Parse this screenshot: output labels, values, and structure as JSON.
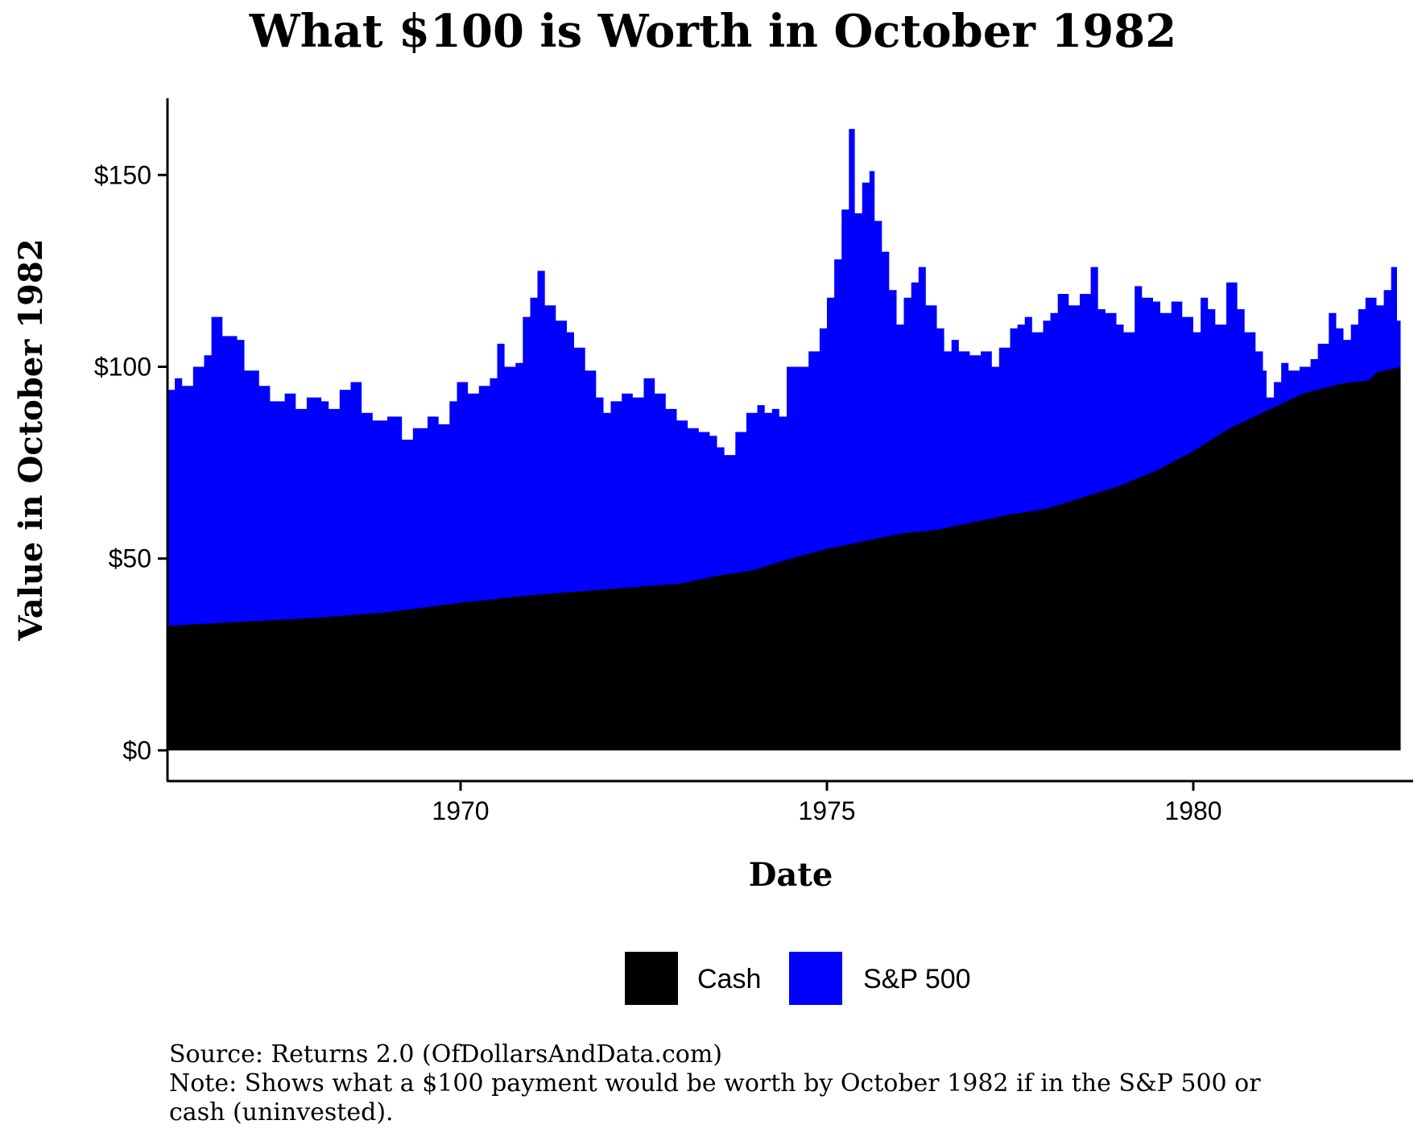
{
  "chart_data": {
    "type": "area",
    "title": "What $100 is Worth in October 1982",
    "xlabel": "Date",
    "ylabel": "Value in October 1982",
    "x_start": "1966-01",
    "x_end": "1982-10",
    "xlim": [
      1966.0,
      1983.0
    ],
    "ylim": [
      -8,
      170
    ],
    "x_ticks": [
      1970,
      1975,
      1980
    ],
    "x_tick_labels": [
      "1970",
      "1975",
      "1980"
    ],
    "y_ticks": [
      0,
      50,
      100,
      150
    ],
    "y_tick_labels": [
      "$0",
      "$50",
      "$100",
      "$150"
    ],
    "grid": false,
    "legend_position": "bottom",
    "series": [
      {
        "name": "Cash",
        "color": "#000000",
        "points": [
          [
            1966.0,
            32.5
          ],
          [
            1967.0,
            33.5
          ],
          [
            1968.0,
            34.5
          ],
          [
            1969.0,
            36.0
          ],
          [
            1970.0,
            38.5
          ],
          [
            1971.0,
            40.5
          ],
          [
            1972.0,
            42.0
          ],
          [
            1973.0,
            43.5
          ],
          [
            1973.5,
            45.5
          ],
          [
            1974.0,
            47.0
          ],
          [
            1974.5,
            50.0
          ],
          [
            1975.0,
            52.5
          ],
          [
            1975.5,
            54.5
          ],
          [
            1976.0,
            56.5
          ],
          [
            1976.5,
            57.5
          ],
          [
            1977.0,
            59.5
          ],
          [
            1977.5,
            61.5
          ],
          [
            1978.0,
            63.0
          ],
          [
            1978.5,
            66.0
          ],
          [
            1979.0,
            69.0
          ],
          [
            1979.5,
            73.0
          ],
          [
            1980.0,
            78.0
          ],
          [
            1980.5,
            84.0
          ],
          [
            1981.0,
            88.5
          ],
          [
            1981.5,
            93.0
          ],
          [
            1982.0,
            95.5
          ],
          [
            1982.4,
            96.5
          ],
          [
            1982.5,
            98.5
          ],
          [
            1982.83,
            100.0
          ]
        ]
      },
      {
        "name": "S&P 500",
        "color": "#0000ff",
        "points": [
          [
            1966.0,
            94
          ],
          [
            1966.1,
            97
          ],
          [
            1966.2,
            95
          ],
          [
            1966.35,
            100
          ],
          [
            1966.5,
            103
          ],
          [
            1966.6,
            113
          ],
          [
            1966.75,
            108
          ],
          [
            1966.95,
            107
          ],
          [
            1967.05,
            99
          ],
          [
            1967.25,
            95
          ],
          [
            1967.4,
            91
          ],
          [
            1967.6,
            93
          ],
          [
            1967.75,
            89
          ],
          [
            1967.9,
            92
          ],
          [
            1968.1,
            91
          ],
          [
            1968.2,
            89
          ],
          [
            1968.35,
            94
          ],
          [
            1968.5,
            96
          ],
          [
            1968.65,
            88
          ],
          [
            1968.8,
            86
          ],
          [
            1969.0,
            87
          ],
          [
            1969.2,
            81
          ],
          [
            1969.35,
            84
          ],
          [
            1969.55,
            87
          ],
          [
            1969.7,
            85
          ],
          [
            1969.85,
            91
          ],
          [
            1969.95,
            96
          ],
          [
            1970.1,
            93
          ],
          [
            1970.25,
            95
          ],
          [
            1970.4,
            97
          ],
          [
            1970.5,
            106
          ],
          [
            1970.6,
            100
          ],
          [
            1970.75,
            101
          ],
          [
            1970.85,
            113
          ],
          [
            1970.95,
            118
          ],
          [
            1971.05,
            125
          ],
          [
            1971.15,
            116
          ],
          [
            1971.3,
            112
          ],
          [
            1971.45,
            109
          ],
          [
            1971.55,
            105
          ],
          [
            1971.7,
            99
          ],
          [
            1971.85,
            92
          ],
          [
            1971.95,
            88
          ],
          [
            1972.05,
            91
          ],
          [
            1972.2,
            93
          ],
          [
            1972.35,
            92
          ],
          [
            1972.5,
            97
          ],
          [
            1972.65,
            93
          ],
          [
            1972.8,
            89
          ],
          [
            1972.95,
            86
          ],
          [
            1973.1,
            84
          ],
          [
            1973.25,
            83
          ],
          [
            1973.4,
            82
          ],
          [
            1973.5,
            79
          ],
          [
            1973.6,
            77
          ],
          [
            1973.75,
            83
          ],
          [
            1973.9,
            88
          ],
          [
            1974.05,
            90
          ],
          [
            1974.15,
            88
          ],
          [
            1974.25,
            89
          ],
          [
            1974.35,
            87
          ],
          [
            1974.45,
            100
          ],
          [
            1974.6,
            100
          ],
          [
            1974.75,
            104
          ],
          [
            1974.9,
            110
          ],
          [
            1975.0,
            118
          ],
          [
            1975.1,
            128
          ],
          [
            1975.2,
            141
          ],
          [
            1975.3,
            162
          ],
          [
            1975.38,
            140
          ],
          [
            1975.48,
            148
          ],
          [
            1975.58,
            151
          ],
          [
            1975.65,
            138
          ],
          [
            1975.75,
            130
          ],
          [
            1975.85,
            120
          ],
          [
            1975.95,
            111
          ],
          [
            1976.05,
            118
          ],
          [
            1976.15,
            122
          ],
          [
            1976.25,
            126
          ],
          [
            1976.35,
            116
          ],
          [
            1976.5,
            110
          ],
          [
            1976.6,
            104
          ],
          [
            1976.7,
            107
          ],
          [
            1976.8,
            104
          ],
          [
            1976.95,
            103
          ],
          [
            1977.1,
            104
          ],
          [
            1977.25,
            100
          ],
          [
            1977.35,
            105
          ],
          [
            1977.5,
            110
          ],
          [
            1977.6,
            111
          ],
          [
            1977.7,
            113
          ],
          [
            1977.8,
            109
          ],
          [
            1977.95,
            112
          ],
          [
            1978.05,
            114
          ],
          [
            1978.15,
            119
          ],
          [
            1978.3,
            116
          ],
          [
            1978.45,
            119
          ],
          [
            1978.6,
            126
          ],
          [
            1978.7,
            115
          ],
          [
            1978.8,
            114
          ],
          [
            1978.95,
            111
          ],
          [
            1979.05,
            109
          ],
          [
            1979.2,
            121
          ],
          [
            1979.3,
            118
          ],
          [
            1979.45,
            117
          ],
          [
            1979.55,
            114
          ],
          [
            1979.7,
            117
          ],
          [
            1979.85,
            113
          ],
          [
            1980.0,
            109
          ],
          [
            1980.1,
            118
          ],
          [
            1980.2,
            115
          ],
          [
            1980.3,
            111
          ],
          [
            1980.45,
            122
          ],
          [
            1980.6,
            115
          ],
          [
            1980.7,
            109
          ],
          [
            1980.85,
            104
          ],
          [
            1980.95,
            99
          ],
          [
            1981.0,
            92
          ],
          [
            1981.1,
            96
          ],
          [
            1981.2,
            101
          ],
          [
            1981.3,
            99
          ],
          [
            1981.45,
            100
          ],
          [
            1981.6,
            102
          ],
          [
            1981.7,
            106
          ],
          [
            1981.85,
            114
          ],
          [
            1981.95,
            110
          ],
          [
            1982.05,
            107
          ],
          [
            1982.15,
            111
          ],
          [
            1982.25,
            115
          ],
          [
            1982.35,
            118
          ],
          [
            1982.5,
            116
          ],
          [
            1982.6,
            120
          ],
          [
            1982.7,
            126
          ],
          [
            1982.78,
            112
          ],
          [
            1982.83,
            111
          ]
        ]
      }
    ],
    "caption_lines": [
      "Source: Returns 2.0 (OfDollarsAndData.com)",
      "Note: Shows what a $100 payment would be worth by October 1982 if in the S&P 500 or",
      "cash (uninvested)."
    ]
  }
}
